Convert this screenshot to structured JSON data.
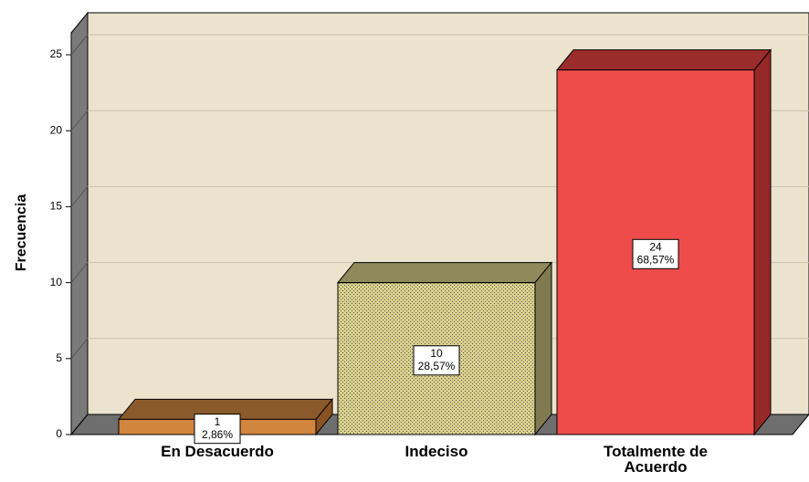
{
  "chart_data": {
    "type": "bar3d",
    "ylabel": "Frecuencia",
    "categories": [
      "En Desacuerdo",
      "Indeciso",
      "Totalmente de Acuerdo"
    ],
    "values": [
      1,
      10,
      24
    ],
    "percentages": [
      2.86,
      28.57,
      68.57
    ],
    "percentage_labels": [
      "2,86%",
      "28,57%",
      "68,57%"
    ],
    "colors": [
      "#d2853e",
      "#d9d08c",
      "#ee4b4b"
    ],
    "top_colors": [
      "#8b5a2b",
      "#8f8a5c",
      "#9b2c2c"
    ],
    "side_colors": [
      "#8a5222",
      "#807a50",
      "#962828"
    ],
    "patterns": [
      null,
      "dots",
      null
    ],
    "ylim": [
      0,
      26.5
    ],
    "yticks": [
      0,
      5,
      10,
      15,
      20,
      25
    ],
    "grid": true
  }
}
